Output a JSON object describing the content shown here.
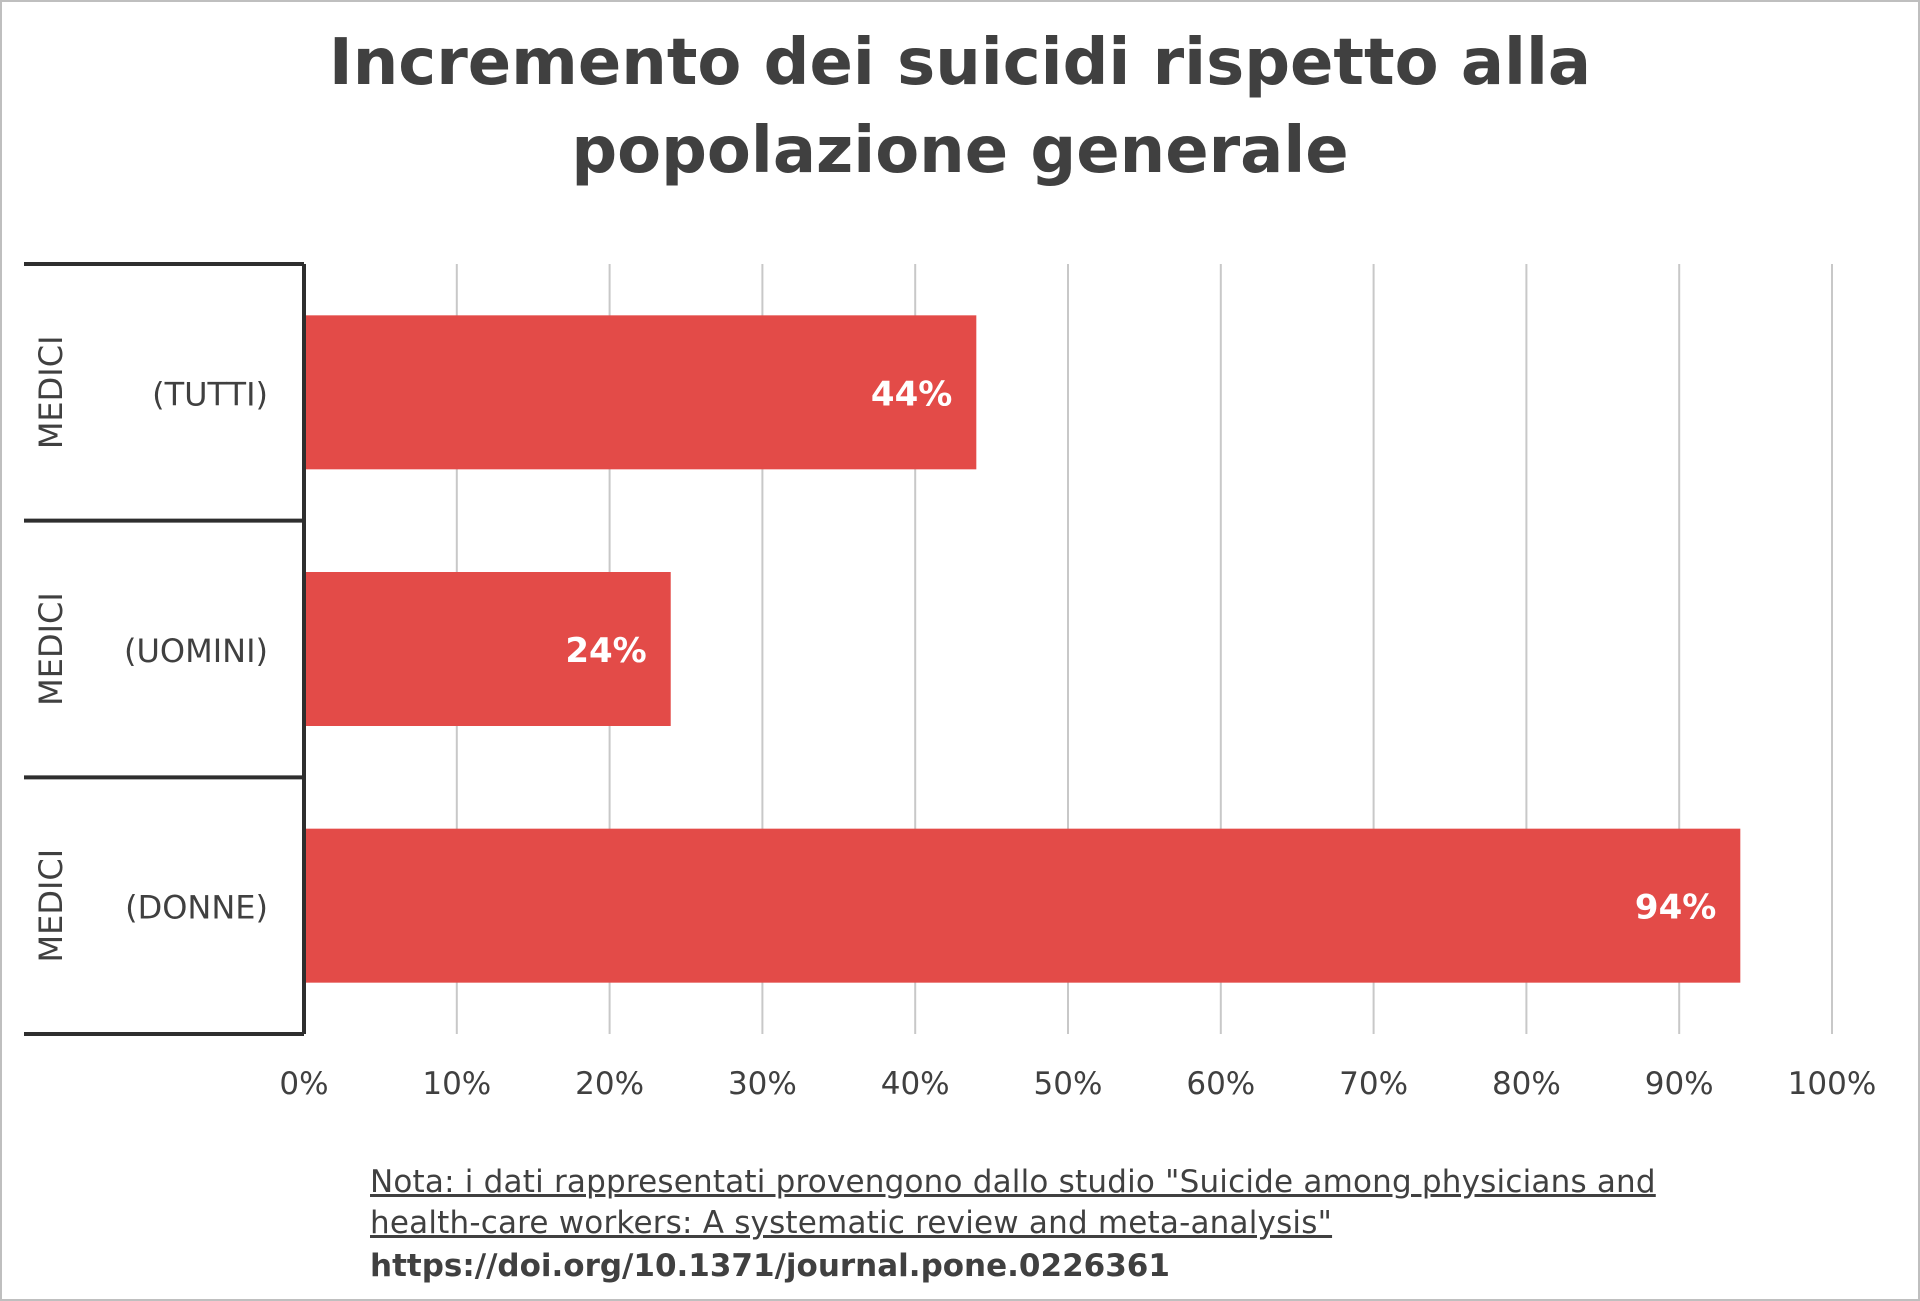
{
  "chart_data": {
    "type": "bar",
    "orientation": "horizontal",
    "title": "Incremento dei suicidi rispetto alla popolazione generale",
    "title_lines": [
      "Incremento dei suicidi rispetto alla",
      "popolazione generale"
    ],
    "group_label": "MEDICI",
    "categories": [
      "(TUTTI)",
      "(UOMINI)",
      "(DONNE)"
    ],
    "values": [
      44,
      24,
      94
    ],
    "data_labels": [
      "44%",
      "24%",
      "94%"
    ],
    "xlim": [
      0,
      100
    ],
    "x_ticks": [
      "0%",
      "10%",
      "20%",
      "30%",
      "40%",
      "50%",
      "60%",
      "70%",
      "80%",
      "90%",
      "100%"
    ],
    "grid": "vertical",
    "bar_color": "#e34b48"
  },
  "note": {
    "line1": "Nota: i dati rappresentati provengono dallo studio \"Suicide among physicians and",
    "line2": "health-care workers: A systematic review and meta-analysis\"",
    "doi": "https://doi.org/10.1371/journal.pone.0226361"
  }
}
